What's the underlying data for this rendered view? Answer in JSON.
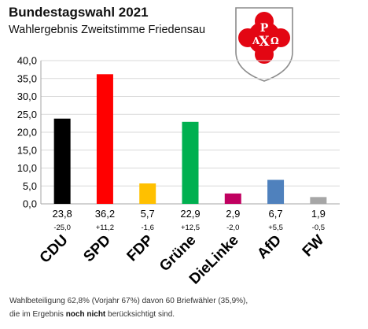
{
  "header": {
    "title": "Bundestagswahl 2021",
    "subtitle": "Wahlergebnis Zweitstimme Friedensau"
  },
  "crest": {
    "icon": "coat-of-arms-icon",
    "letters": [
      "A",
      "P",
      "X",
      "Ω"
    ],
    "colors": {
      "field": "#e30613",
      "outline": "#8c8c8c"
    }
  },
  "chart_data": {
    "type": "bar",
    "categories": [
      "CDU",
      "SPD",
      "FDP",
      "Grüne",
      "DieLinke",
      "AfD",
      "FW"
    ],
    "values": [
      23.8,
      36.2,
      5.7,
      22.9,
      2.9,
      6.7,
      1.9
    ],
    "value_labels": [
      "23,8",
      "36,2",
      "5,7",
      "22,9",
      "2,9",
      "6,7",
      "1,9"
    ],
    "change_labels": [
      "-25,0",
      "+11,2",
      "-1,6",
      "+12,5",
      "-2,0",
      "+5,5",
      "-0,5"
    ],
    "colors": [
      "#000000",
      "#ff0000",
      "#ffc000",
      "#00b050",
      "#c00060",
      "#4f81bd",
      "#a6a6a6"
    ],
    "ylim": [
      0,
      40
    ],
    "yticks": [
      "0,0",
      "5,0",
      "10,0",
      "15,0",
      "20,0",
      "25,0",
      "30,0",
      "35,0",
      "40,0"
    ],
    "grid": true
  },
  "footnote": {
    "line1": "Wahlbeteiligung 62,8% (Vorjahr 67%) davon 60 Briefwähler (35,9%),",
    "line2_pre": "die im Ergebnis ",
    "line2_bold": "noch nicht",
    "line2_post": " berücksichtigt sind."
  }
}
